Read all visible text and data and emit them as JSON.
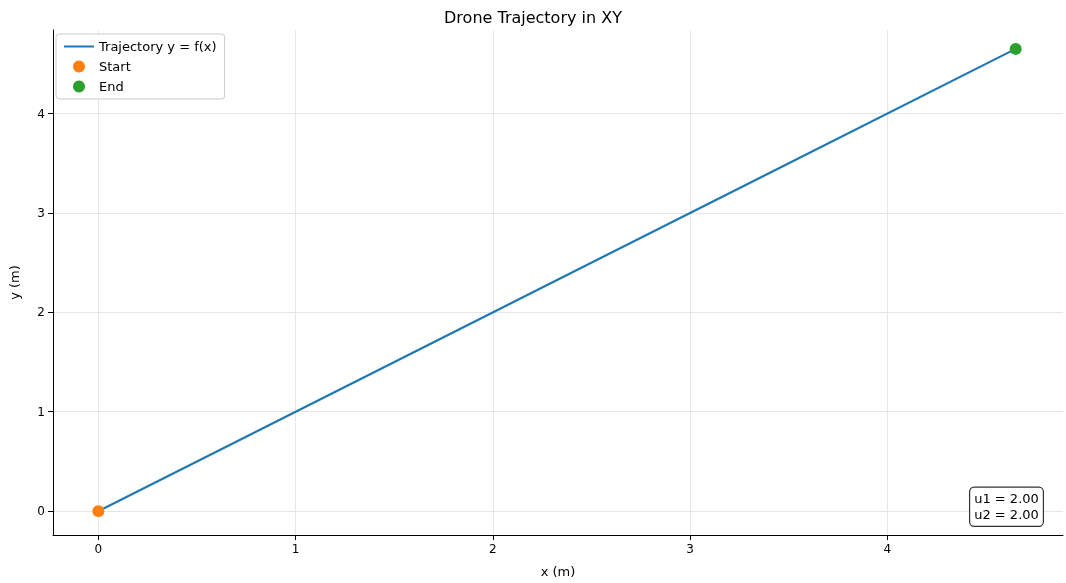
{
  "chart_data": {
    "type": "line",
    "title": "Drone Trajectory in XY",
    "xlabel": "x (m)",
    "ylabel": "y (m)",
    "x": [
      0,
      4.65
    ],
    "series": [
      {
        "name": "Trajectory y = f(x)",
        "type": "line",
        "color": "#1f77b4",
        "values": [
          0,
          4.65
        ],
        "marker": "none"
      },
      {
        "name": "Start",
        "type": "scatter",
        "color": "#ff7f0e",
        "values": [
          0,
          null
        ],
        "marker": "circle"
      },
      {
        "name": "End",
        "type": "scatter",
        "color": "#2ca02c",
        "values": [
          null,
          4.65
        ],
        "marker": "circle"
      }
    ],
    "xlim": [
      -0.23,
      4.89
    ],
    "xticks": [
      0,
      1,
      2,
      3,
      4
    ],
    "ylim": [
      -0.24,
      4.84
    ],
    "yticks": [
      0,
      1,
      2,
      3,
      4
    ],
    "grid": true,
    "legend": "top left",
    "annotations": [
      "u1 = 2.00",
      "u2 = 2.00"
    ]
  }
}
